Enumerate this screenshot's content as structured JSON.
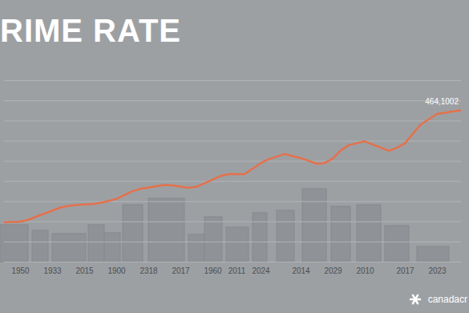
{
  "chart_data": {
    "type": "line",
    "title": "RIME RATE",
    "color": "#e4714c",
    "grid": true,
    "tick_labels": "x",
    "annotation": "464,1002",
    "source": "canadacr",
    "categories": [
      null,
      null,
      "1950",
      null,
      null,
      null,
      "1933",
      null,
      null,
      null,
      "2015",
      null,
      null,
      null,
      "1900",
      null,
      null,
      null,
      "2318",
      null,
      null,
      null,
      "2017",
      null,
      null,
      null,
      "1960",
      null,
      null,
      "2011",
      null,
      null,
      "2024",
      null,
      null,
      null,
      null,
      "2014",
      null,
      null,
      null,
      "2029",
      null,
      null,
      null,
      "2010",
      null,
      null,
      null,
      null,
      "2017",
      null,
      null,
      null,
      "2023",
      null,
      null,
      null
    ],
    "values": [
      1.95,
      1.97,
      1.98,
      2.07,
      2.23,
      2.38,
      2.53,
      2.68,
      2.77,
      2.81,
      2.84,
      2.86,
      2.92,
      3.01,
      3.11,
      3.3,
      3.49,
      3.61,
      3.67,
      3.74,
      3.8,
      3.78,
      3.72,
      3.66,
      3.71,
      3.89,
      4.07,
      4.25,
      4.34,
      4.34,
      4.34,
      4.61,
      4.88,
      5.08,
      5.21,
      5.34,
      5.24,
      5.14,
      5.0,
      4.86,
      4.89,
      5.11,
      5.52,
      5.78,
      5.88,
      5.97,
      5.81,
      5.66,
      5.5,
      5.65,
      5.87,
      6.35,
      6.81,
      7.07,
      7.33,
      7.39,
      7.46,
      7.51
    ],
    "ylim": [
      0,
      9
    ],
    "yticks": [
      0,
      1,
      2,
      3,
      4,
      5,
      6,
      7,
      8,
      9
    ]
  }
}
